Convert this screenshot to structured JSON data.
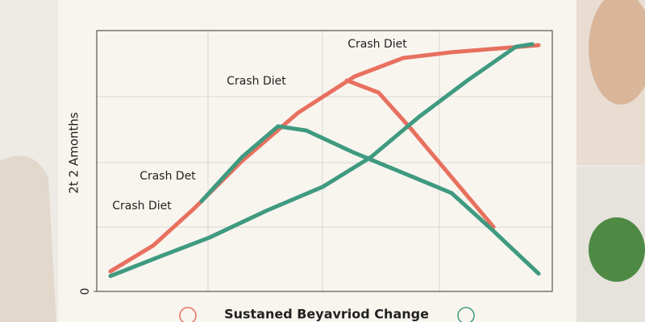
{
  "chart_data": {
    "type": "line",
    "y_label": "2t 2 Amonths",
    "x_label": "Sustaned Beyavriod Change",
    "xlim": [
      0,
      100
    ],
    "ylim": [
      0,
      100
    ],
    "yticks": [
      0
    ],
    "annotations": [
      "Crash Diet",
      "Crash Diet",
      "Crash Det",
      "Crash Diet"
    ],
    "series": [
      {
        "color": "#e8705f",
        "x": [
          3,
          12.4,
          21.2,
          31.9,
          44.2,
          56.6,
          67.3,
          77.9,
          97
        ],
        "values": [
          7.7,
          17.6,
          31.5,
          50,
          68.5,
          82.4,
          89.5,
          91.7,
          94.4
        ]
      },
      {
        "color": "#e8705f",
        "x": [
          54.9,
          61.9,
          69,
          77.9,
          87.1
        ],
        "values": [
          80.9,
          76.2,
          62.3,
          43.8,
          24.7
        ]
      },
      {
        "color": "#3f9a80",
        "x": [
          3,
          14.2,
          24.8,
          37.2,
          49.6,
          60.2,
          70.8,
          81.4,
          92,
          95.6
        ],
        "values": [
          5.9,
          13.6,
          20.7,
          30.9,
          40.1,
          51.5,
          67,
          80.9,
          93.8,
          94.8
        ]
      },
      {
        "color": "#3f9a80",
        "x": [
          23,
          31.9,
          39.8,
          46,
          56.6,
          67.3,
          77.9,
          86.7,
          97
        ],
        "values": [
          34.6,
          51.5,
          63.3,
          61.7,
          53.1,
          45.4,
          37.7,
          23.8,
          6.8
        ]
      }
    ]
  }
}
